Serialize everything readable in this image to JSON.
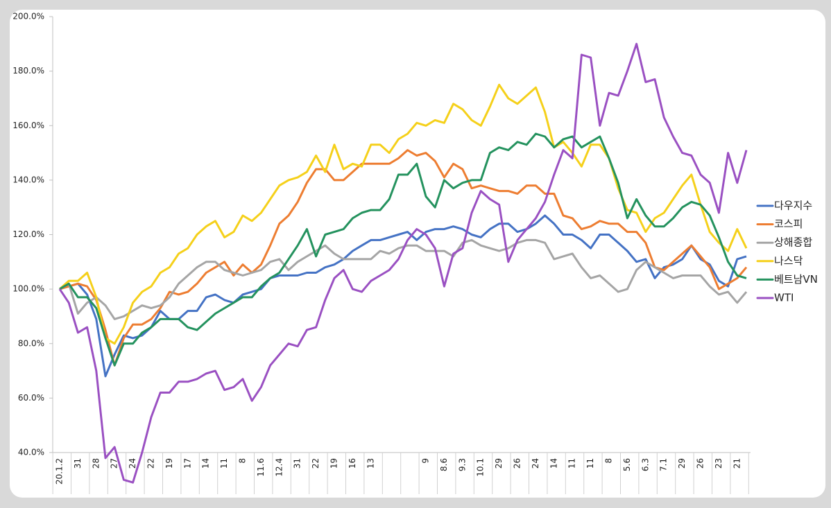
{
  "chart_data": {
    "type": "line",
    "legend": "right",
    "grid": false,
    "ylim": [
      40,
      200
    ],
    "yticks": [
      {
        "value": 40,
        "label": "40.0%"
      },
      {
        "value": 60,
        "label": "60.0%"
      },
      {
        "value": 80,
        "label": "80.0%"
      },
      {
        "value": 100,
        "label": "100.0%"
      },
      {
        "value": 120,
        "label": "120.0%"
      },
      {
        "value": 140,
        "label": "140.0%"
      },
      {
        "value": 160,
        "label": "160.0%"
      },
      {
        "value": 180,
        "label": "180.0%"
      },
      {
        "value": 200,
        "label": "200.0%"
      }
    ],
    "categories": [
      "20.1.2",
      null,
      "31",
      null,
      "28",
      null,
      "27",
      null,
      "24",
      null,
      "22",
      null,
      "19",
      null,
      "17",
      null,
      "14",
      null,
      "11",
      null,
      "8",
      null,
      "11.6",
      null,
      "12.4",
      null,
      "31",
      null,
      "22",
      null,
      "19",
      null,
      "16",
      null,
      "13",
      null,
      null,
      null,
      null,
      null,
      "9",
      null,
      "8.6",
      null,
      "9.3",
      null,
      "10.1",
      null,
      "29",
      null,
      "26",
      null,
      "24",
      null,
      "14",
      null,
      "11",
      null,
      "11",
      null,
      "8",
      null,
      "5.6",
      null,
      "6.3",
      null,
      "7.1",
      null,
      "29",
      null,
      "26",
      null,
      "23",
      null,
      "21",
      null
    ],
    "series": [
      {
        "name": "다우지수",
        "color": "#4472c4",
        "values": [
          100,
          101,
          102,
          98,
          89,
          68,
          76,
          83,
          82,
          83,
          86,
          92,
          89,
          89,
          92,
          92,
          97,
          98,
          96,
          95,
          98,
          99,
          100,
          104,
          105,
          105,
          105,
          106,
          106,
          108,
          109,
          111,
          114,
          116,
          118,
          118,
          119,
          120,
          121,
          118,
          121,
          122,
          122,
          123,
          122,
          120,
          119,
          122,
          124,
          124,
          121,
          122,
          124,
          127,
          124,
          120,
          120,
          118,
          115,
          120,
          120,
          117,
          114,
          110,
          111,
          104,
          108,
          109,
          111,
          116,
          111,
          109,
          103,
          101,
          111,
          112
        ]
      },
      {
        "name": "코스피",
        "color": "#ed7d31",
        "values": [
          100,
          101,
          102,
          101,
          96,
          85,
          72,
          82,
          87,
          87,
          89,
          93,
          99,
          98,
          99,
          102,
          106,
          108,
          110,
          105,
          109,
          106,
          109,
          116,
          124,
          127,
          132,
          139,
          144,
          144,
          140,
          140,
          143,
          146,
          146,
          146,
          146,
          148,
          151,
          149,
          150,
          147,
          141,
          146,
          144,
          137,
          138,
          137,
          136,
          136,
          135,
          138,
          138,
          135,
          135,
          127,
          126,
          122,
          123,
          125,
          124,
          124,
          121,
          121,
          117,
          108,
          107,
          110,
          113,
          116,
          112,
          108,
          100,
          102,
          104,
          108
        ]
      },
      {
        "name": "상해종합",
        "color": "#a5a5a5",
        "values": [
          100,
          102,
          91,
          95,
          97,
          94,
          89,
          90,
          92,
          94,
          93,
          94,
          97,
          102,
          105,
          108,
          110,
          110,
          107,
          106,
          105,
          106,
          107,
          110,
          111,
          107,
          110,
          112,
          114,
          116,
          113,
          111,
          111,
          111,
          111,
          114,
          113,
          115,
          116,
          116,
          114,
          114,
          114,
          112,
          117,
          118,
          116,
          115,
          114,
          115,
          117,
          118,
          118,
          117,
          111,
          112,
          113,
          108,
          104,
          105,
          102,
          99,
          100,
          107,
          110,
          108,
          106,
          104,
          105,
          105,
          105,
          101,
          98,
          99,
          95,
          99
        ]
      },
      {
        "name": "나스닥",
        "color": "#f5d01a",
        "values": [
          100,
          103,
          103,
          106,
          97,
          82,
          80,
          86,
          95,
          99,
          101,
          106,
          108,
          113,
          115,
          120,
          123,
          125,
          119,
          121,
          127,
          125,
          128,
          133,
          138,
          140,
          141,
          143,
          149,
          143,
          153,
          144,
          146,
          145,
          153,
          153,
          150,
          155,
          157,
          161,
          160,
          162,
          161,
          168,
          166,
          162,
          160,
          167,
          175,
          170,
          168,
          171,
          174,
          165,
          152,
          154,
          150,
          145,
          153,
          153,
          148,
          137,
          129,
          128,
          121,
          126,
          128,
          133,
          138,
          142,
          131,
          121,
          117,
          114,
          122,
          115
        ]
      },
      {
        "name": "베트남VN",
        "color": "#24925e",
        "values": [
          100,
          102,
          97,
          97,
          93,
          82,
          72,
          80,
          80,
          84,
          86,
          89,
          89,
          89,
          86,
          85,
          88,
          91,
          93,
          95,
          97,
          97,
          101,
          104,
          106,
          111,
          116,
          122,
          112,
          120,
          121,
          122,
          126,
          128,
          129,
          129,
          133,
          142,
          142,
          146,
          134,
          130,
          140,
          137,
          139,
          140,
          140,
          150,
          152,
          151,
          154,
          153,
          157,
          156,
          152,
          155,
          156,
          152,
          154,
          156,
          148,
          139,
          126,
          133,
          127,
          123,
          123,
          126,
          130,
          132,
          131,
          127,
          119,
          110,
          105,
          104
        ]
      },
      {
        "name": "WTI",
        "color": "#9a50c2",
        "values": [
          100,
          95,
          84,
          86,
          70,
          38,
          42,
          30,
          29,
          40,
          53,
          62,
          62,
          66,
          66,
          67,
          69,
          70,
          63,
          64,
          67,
          59,
          64,
          72,
          76,
          80,
          79,
          85,
          86,
          96,
          104,
          107,
          100,
          99,
          103,
          105,
          107,
          111,
          118,
          122,
          120,
          115,
          101,
          113,
          115,
          128,
          136,
          133,
          131,
          110,
          118,
          122,
          126,
          132,
          142,
          151,
          148,
          186,
          185,
          160,
          172,
          171,
          180,
          190,
          176,
          177,
          163,
          156,
          150,
          149,
          142,
          139,
          128,
          150,
          139,
          151
        ]
      }
    ]
  }
}
